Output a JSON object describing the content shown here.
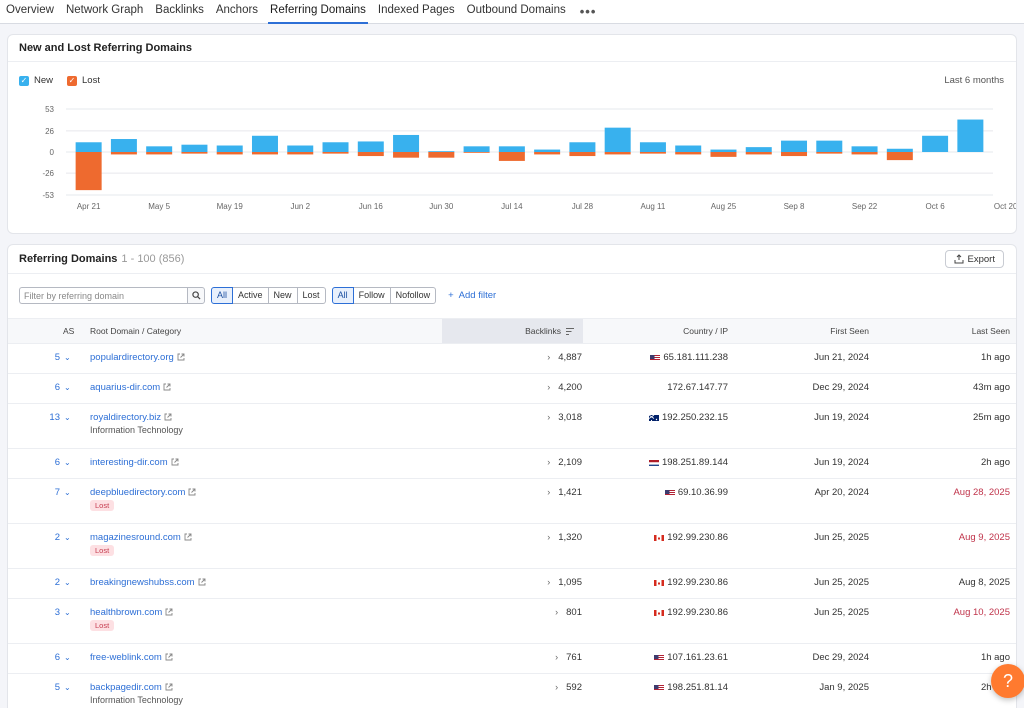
{
  "tabs": [
    {
      "label": "Overview",
      "active": false
    },
    {
      "label": "Network Graph",
      "active": false
    },
    {
      "label": "Backlinks",
      "active": false
    },
    {
      "label": "Anchors",
      "active": false
    },
    {
      "label": "Referring Domains",
      "active": true
    },
    {
      "label": "Indexed Pages",
      "active": false
    },
    {
      "label": "Outbound Domains",
      "active": false
    }
  ],
  "more_label": "•••",
  "chart_card": {
    "title": "New and Lost Referring Domains",
    "legend_new": "New",
    "legend_lost": "Lost",
    "range": "Last 6 months"
  },
  "colors": {
    "new": "#38b1ee",
    "lost": "#ee6a2f",
    "accent": "#2d6fd6",
    "lost_text": "#c0344b",
    "help": "#ff7a2f"
  },
  "chart_data": {
    "type": "bar",
    "stacked_diverging": true,
    "ylim": [
      -53,
      53
    ],
    "yticks": [
      53,
      26,
      0,
      -26,
      -53
    ],
    "xtick_labels": [
      "Apr 21",
      "May 5",
      "May 19",
      "Jun 2",
      "Jun 16",
      "Jun 30",
      "Jul 14",
      "Jul 28",
      "Aug 11",
      "Aug 25",
      "Sep 8",
      "Sep 22",
      "Oct 6",
      "Oct 20"
    ],
    "categories": [
      "Apr 21",
      "Apr 28",
      "May 5",
      "May 12",
      "May 19",
      "May 26",
      "Jun 2",
      "Jun 9",
      "Jun 16",
      "Jun 23",
      "Jun 30",
      "Jul 7",
      "Jul 14",
      "Jul 21",
      "Jul 28",
      "Aug 4",
      "Aug 11",
      "Aug 18",
      "Aug 25",
      "Sep 1",
      "Sep 8",
      "Sep 15",
      "Sep 22",
      "Sep 29",
      "Oct 6",
      "Oct 13"
    ],
    "series": [
      {
        "name": "New",
        "values": [
          12,
          16,
          7,
          9,
          8,
          20,
          8,
          12,
          13,
          21,
          1,
          7,
          7,
          3,
          12,
          30,
          12,
          8,
          3,
          6,
          14,
          14,
          7,
          4,
          20,
          40
        ]
      },
      {
        "name": "Lost",
        "values": [
          -47,
          -3,
          -3,
          -2,
          -3,
          -3,
          -3,
          -2,
          -5,
          -7,
          -7,
          -1,
          -11,
          -3,
          -5,
          -3,
          -2,
          -3,
          -6,
          -3,
          -5,
          -2,
          -3,
          -10,
          0,
          0
        ]
      }
    ],
    "grid": true
  },
  "table_card": {
    "title": "Referring Domains",
    "count": "1 - 100 (856)",
    "export_label": "Export",
    "search_placeholder": "Filter by referring domain",
    "status_filters": [
      "All",
      "Active",
      "New",
      "Lost"
    ],
    "follow_filters": [
      "All",
      "Follow",
      "Nofollow"
    ],
    "add_filter_label": "Add filter",
    "headers": {
      "as": "AS",
      "domain": "Root Domain / Category",
      "backlinks": "Backlinks",
      "country": "Country / IP",
      "first_seen": "First Seen",
      "last_seen": "Last Seen"
    },
    "rows": [
      {
        "as": "5",
        "domain": "populardirectory.org",
        "category": "",
        "lost": false,
        "backlinks": "4,887",
        "flag": "us",
        "ip": "65.181.111.238",
        "first_seen": "Jun 21, 2024",
        "last_seen": "1h ago",
        "last_red": false
      },
      {
        "as": "6",
        "domain": "aquarius-dir.com",
        "category": "",
        "lost": false,
        "backlinks": "4,200",
        "flag": "",
        "ip": "172.67.147.77",
        "first_seen": "Dec 29, 2024",
        "last_seen": "43m ago",
        "last_red": false
      },
      {
        "as": "13",
        "domain": "royaldirectory.biz",
        "category": "Information Technology",
        "lost": false,
        "backlinks": "3,018",
        "flag": "au",
        "ip": "192.250.232.15",
        "first_seen": "Jun 19, 2024",
        "last_seen": "25m ago",
        "last_red": false
      },
      {
        "as": "6",
        "domain": "interesting-dir.com",
        "category": "",
        "lost": false,
        "backlinks": "2,109",
        "flag": "nl",
        "ip": "198.251.89.144",
        "first_seen": "Jun 19, 2024",
        "last_seen": "2h ago",
        "last_red": false
      },
      {
        "as": "7",
        "domain": "deepbluedirectory.com",
        "category": "",
        "lost": true,
        "lost_label": "Lost",
        "backlinks": "1,421",
        "flag": "us",
        "ip": "69.10.36.99",
        "first_seen": "Apr 20, 2024",
        "last_seen": "Aug 28, 2025",
        "last_red": true
      },
      {
        "as": "2",
        "domain": "magazinesround.com",
        "category": "",
        "lost": true,
        "lost_label": "Lost",
        "backlinks": "1,320",
        "flag": "ca",
        "ip": "192.99.230.86",
        "first_seen": "Jun 25, 2025",
        "last_seen": "Aug 9, 2025",
        "last_red": true
      },
      {
        "as": "2",
        "domain": "breakingnewshubss.com",
        "category": "",
        "lost": false,
        "backlinks": "1,095",
        "flag": "ca",
        "ip": "192.99.230.86",
        "first_seen": "Jun 25, 2025",
        "last_seen": "Aug 8, 2025",
        "last_red": false
      },
      {
        "as": "3",
        "domain": "healthbrown.com",
        "category": "",
        "lost": true,
        "lost_label": "Lost",
        "backlinks": "801",
        "flag": "ca",
        "ip": "192.99.230.86",
        "first_seen": "Jun 25, 2025",
        "last_seen": "Aug 10, 2025",
        "last_red": true
      },
      {
        "as": "6",
        "domain": "free-weblink.com",
        "category": "",
        "lost": false,
        "backlinks": "761",
        "flag": "us",
        "ip": "107.161.23.61",
        "first_seen": "Dec 29, 2024",
        "last_seen": "1h ago",
        "last_red": false
      },
      {
        "as": "5",
        "domain": "backpagedir.com",
        "category": "Information Technology",
        "lost": false,
        "backlinks": "592",
        "flag": "us",
        "ip": "198.251.81.14",
        "first_seen": "Jan 9, 2025",
        "last_seen": "2h ago",
        "last_red": false
      }
    ]
  },
  "help_label": "?"
}
